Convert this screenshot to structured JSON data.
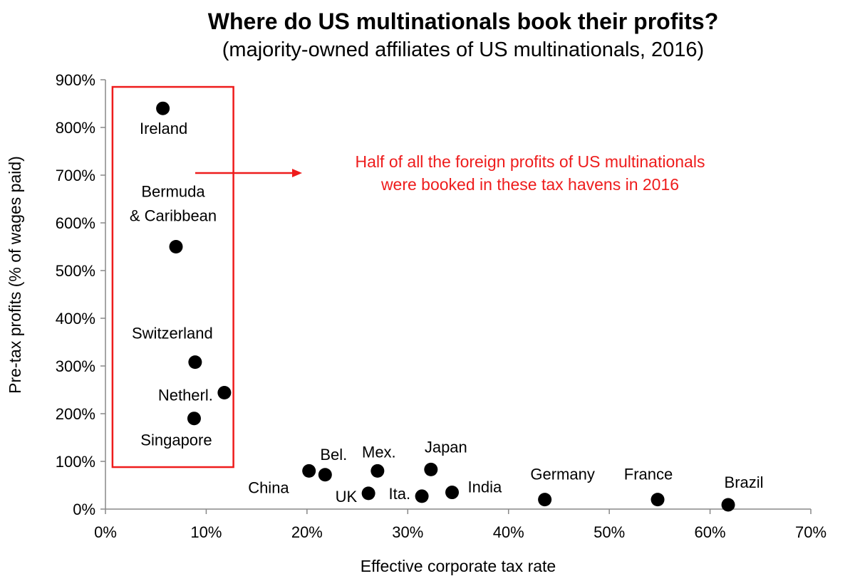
{
  "chart_data": {
    "type": "scatter",
    "title": "Where do US multinationals book their profits?",
    "subtitle": "(majority-owned affiliates of US multinationals, 2016)",
    "xlabel": "Effective corporate tax rate",
    "ylabel": "Pre-tax profits (% of wages paid)",
    "xlim": [
      0,
      70
    ],
    "ylim": [
      0,
      900
    ],
    "xticks": [
      "0%",
      "10%",
      "20%",
      "30%",
      "40%",
      "50%",
      "60%",
      "70%"
    ],
    "yticks": [
      "0%",
      "100%",
      "200%",
      "300%",
      "400%",
      "500%",
      "600%",
      "700%",
      "800%",
      "900%"
    ],
    "grid": false,
    "marker_color": "#000000",
    "points": [
      {
        "label": "Ireland",
        "x": 5.7,
        "y": 840
      },
      {
        "label": "Bermuda\n& Caribbean",
        "x": 7.0,
        "y": 550
      },
      {
        "label": "Switzerland",
        "x": 8.9,
        "y": 308
      },
      {
        "label": "Netherl.",
        "x": 11.8,
        "y": 244
      },
      {
        "label": "Singapore",
        "x": 8.8,
        "y": 190
      },
      {
        "label": "China",
        "x": 20.2,
        "y": 80
      },
      {
        "label": "Bel.",
        "x": 21.8,
        "y": 72
      },
      {
        "label": "Mex.",
        "x": 27.0,
        "y": 80
      },
      {
        "label": "UK",
        "x": 26.1,
        "y": 33
      },
      {
        "label": "Ita.",
        "x": 31.4,
        "y": 27
      },
      {
        "label": "Japan",
        "x": 32.3,
        "y": 83
      },
      {
        "label": "India",
        "x": 34.4,
        "y": 35
      },
      {
        "label": "Germany",
        "x": 43.6,
        "y": 20
      },
      {
        "label": "France",
        "x": 54.8,
        "y": 20
      },
      {
        "label": "Brazil",
        "x": 61.8,
        "y": 9
      }
    ],
    "annotation": {
      "lines": [
        "Half of all the foreign profits of US multinationals",
        "were booked in these tax havens in 2016"
      ],
      "color": "#ee1c1c",
      "box_x_range": [
        0.7,
        12.7
      ],
      "box_y_range": [
        88,
        885
      ]
    }
  }
}
